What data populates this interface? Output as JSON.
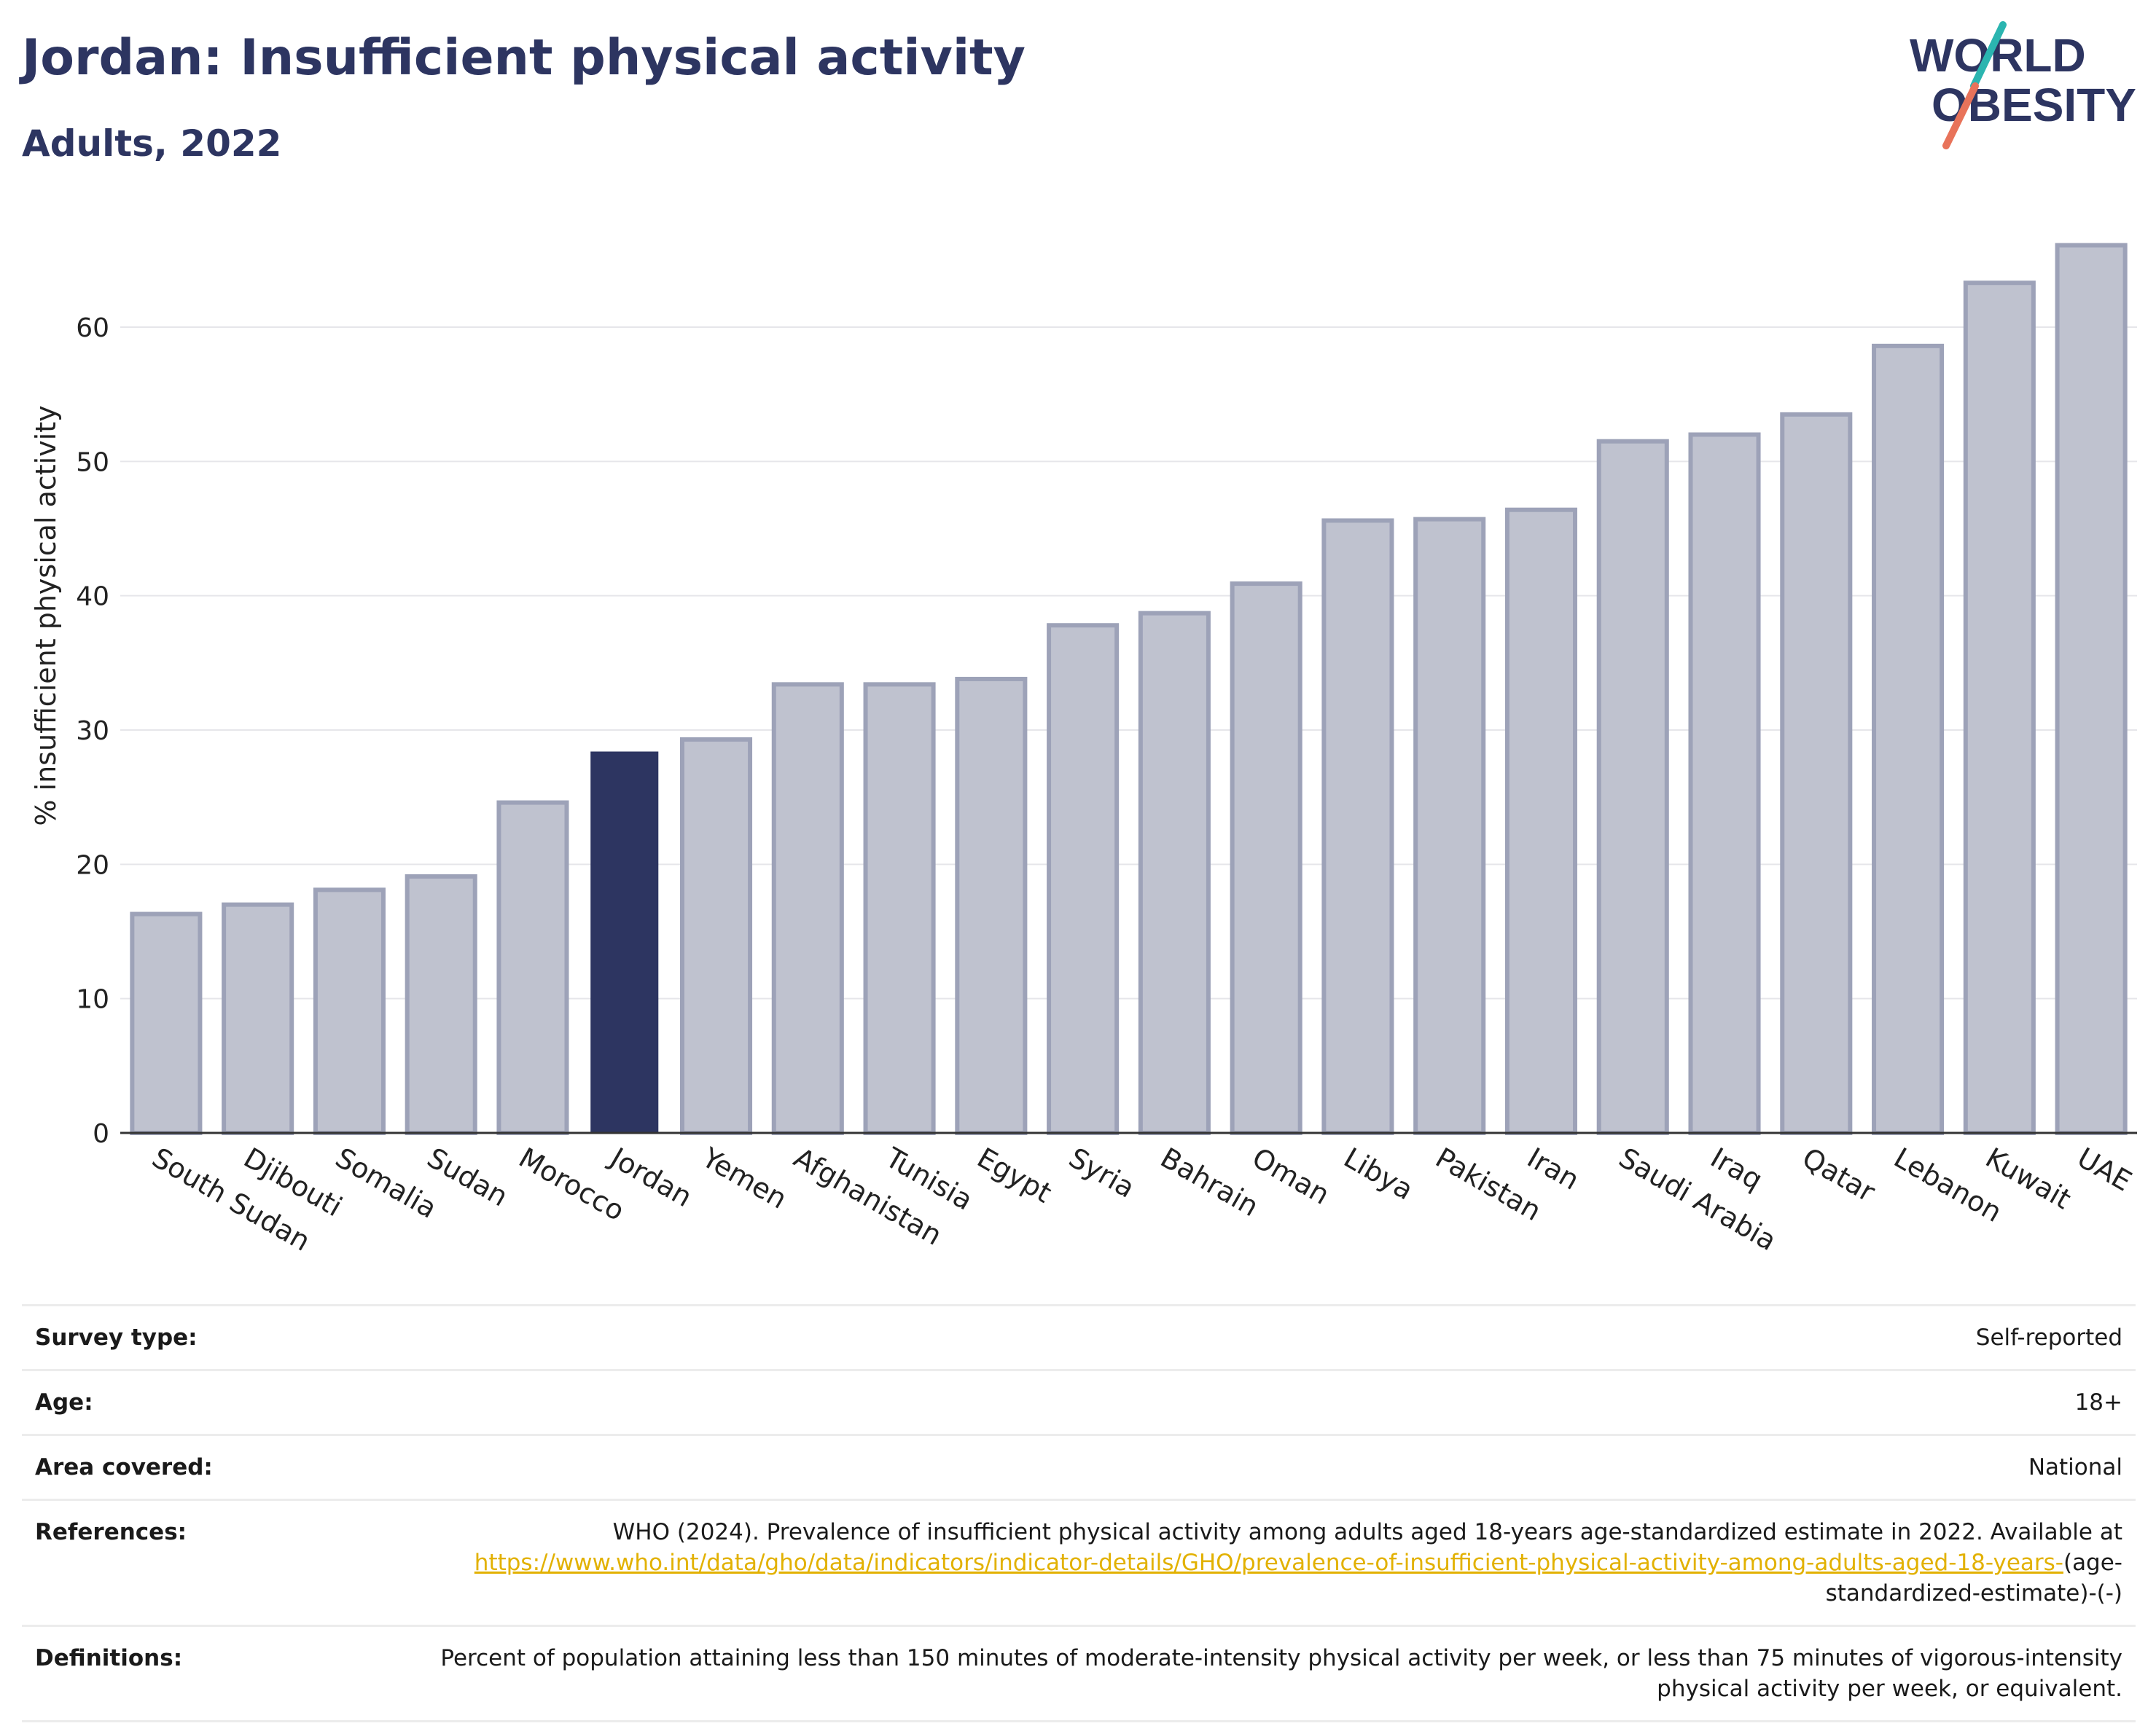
{
  "header": {
    "title": "Jordan: Insufficient physical activity",
    "subtitle": "Adults, 2022"
  },
  "logo": {
    "line1": "WORLD",
    "line2": "OBESITY"
  },
  "chart_data": {
    "type": "bar",
    "title": "",
    "xlabel": "",
    "ylabel": "% insufficient physical activity",
    "ylim": [
      0,
      67
    ],
    "yticks": [
      0,
      10,
      20,
      30,
      40,
      50,
      60
    ],
    "grid": true,
    "highlight": "Jordan",
    "colors": {
      "default": "#bfc2cf",
      "default_border": "#9da2b8",
      "highlight": "#2d3561"
    },
    "categories": [
      "South Sudan",
      "Djibouti",
      "Somalia",
      "Sudan",
      "Morocco",
      "Jordan",
      "Yemen",
      "Afghanistan",
      "Tunisia",
      "Egypt",
      "Syria",
      "Bahrain",
      "Oman",
      "Libya",
      "Pakistan",
      "Iran",
      "Saudi Arabia",
      "Iraq",
      "Qatar",
      "Lebanon",
      "Kuwait",
      "UAE"
    ],
    "values": [
      16.3,
      17.0,
      18.1,
      19.1,
      24.6,
      28.4,
      29.3,
      33.4,
      33.4,
      33.8,
      37.8,
      38.7,
      40.9,
      45.6,
      45.7,
      46.4,
      51.5,
      52.0,
      53.5,
      58.6,
      63.3,
      66.1
    ]
  },
  "info": {
    "survey_type_label": "Survey type:",
    "survey_type_value": "Self-reported",
    "age_label": "Age:",
    "age_value": "18+",
    "area_label": "Area covered:",
    "area_value": "National",
    "references_label": "References:",
    "references_text": "WHO (2024). Prevalence of insufficient physical activity among adults aged 18-years age-standardized estimate in 2022. Available at",
    "references_link": "https://www.who.int/data/gho/data/indicators/indicator-details/GHO/prevalence-of-insufficient-physical-activity-among-adults-aged-18-years-",
    "references_suffix": "(age-standardized-estimate)-(-)",
    "definitions_label": "Definitions:",
    "definitions_text": "Percent of population attaining less than 150 minutes of moderate-intensity physical activity per week, or less than 75 minutes of vigorous-intensity physical activity per week, or equivalent."
  }
}
